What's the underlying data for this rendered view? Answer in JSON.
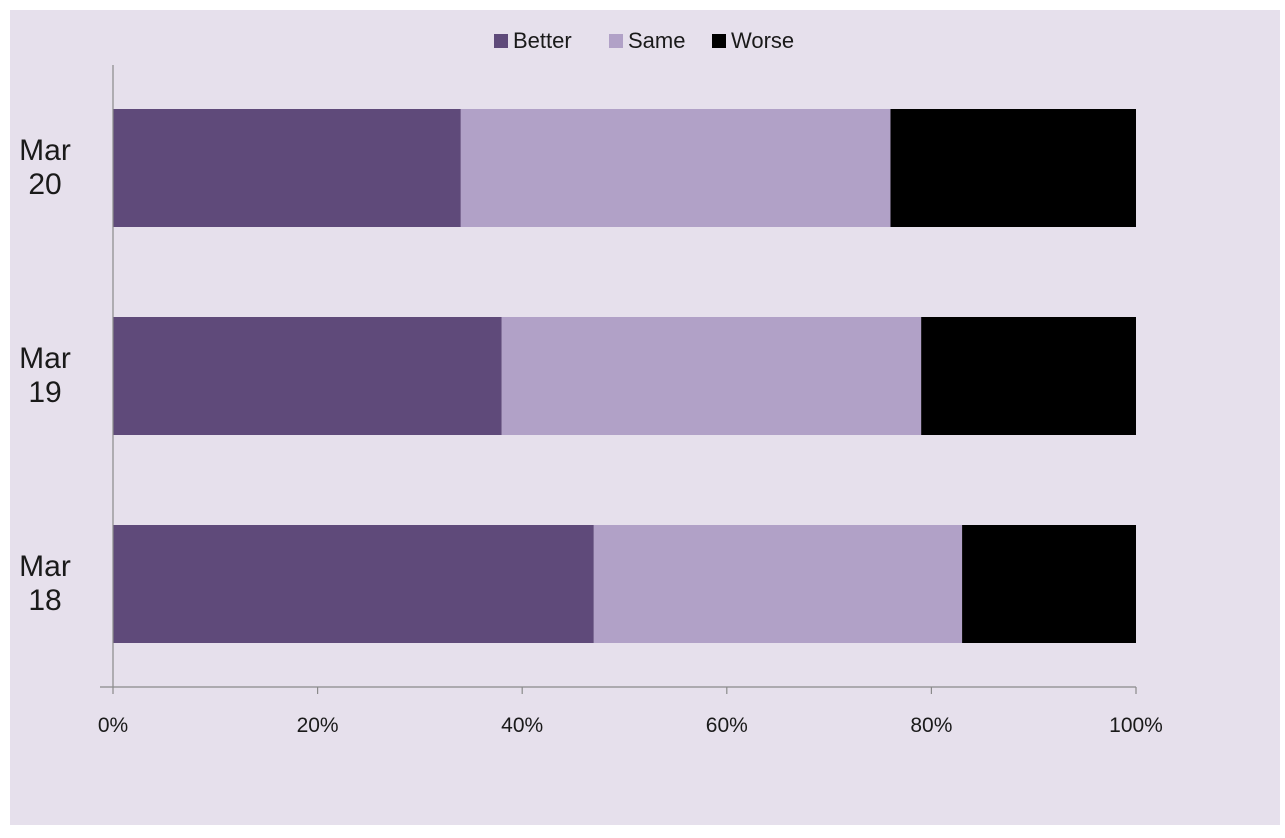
{
  "chart_data": {
    "type": "bar",
    "orientation": "horizontal",
    "stacked": "percent",
    "categories": [
      [
        "Mar",
        "20"
      ],
      [
        "Mar",
        "19"
      ],
      [
        "Mar",
        "18"
      ]
    ],
    "series": [
      {
        "name": "Better",
        "color": "#5f4a7a",
        "values": [
          34,
          38,
          47
        ]
      },
      {
        "name": "Same",
        "color": "#b1a1c7",
        "values": [
          42,
          41,
          36
        ]
      },
      {
        "name": "Worse",
        "color": "#000000",
        "values": [
          24,
          21,
          17
        ]
      }
    ],
    "xlim": [
      0,
      100
    ],
    "x_ticks": [
      "0%",
      "20%",
      "40%",
      "60%",
      "80%",
      "100%"
    ],
    "legend_position": "top-center",
    "grid": false,
    "background": "#e6e0ec"
  }
}
